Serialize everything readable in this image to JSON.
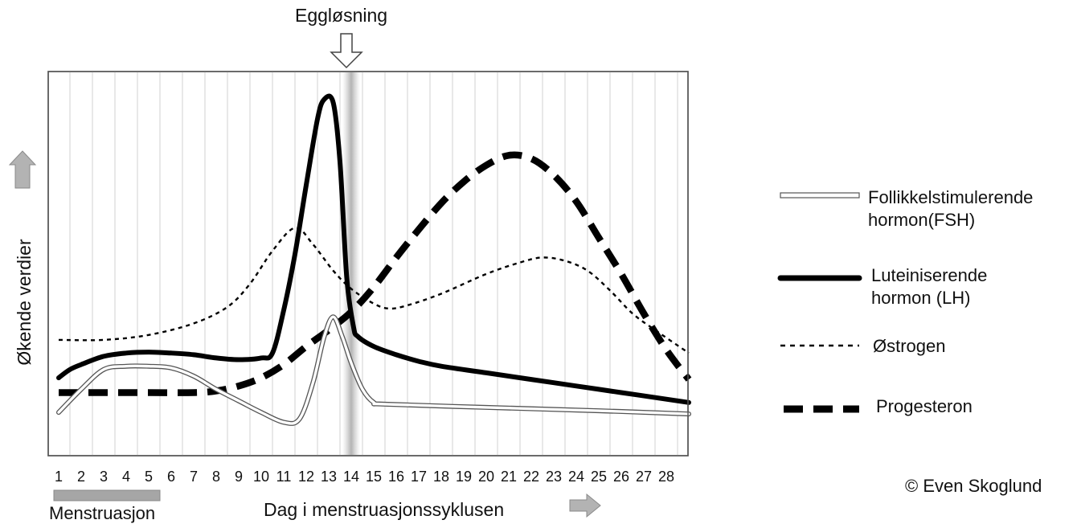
{
  "chart_data": {
    "type": "line",
    "title": "",
    "ovulation_label": "Eggløsning",
    "ovulation_day": 14,
    "xlabel": "Dag i menstruasjonssyklusen",
    "ylabel": "Økende verdier",
    "x": [
      1,
      2,
      3,
      4,
      5,
      6,
      7,
      8,
      9,
      10,
      11,
      12,
      13,
      14,
      15,
      16,
      17,
      18,
      19,
      20,
      21,
      22,
      23,
      24,
      25,
      26,
      27,
      28
    ],
    "xlim": [
      0.9,
      29.1
    ],
    "ylim": [
      0,
      100
    ],
    "grid": true,
    "legend_position": "right",
    "menstruation": {
      "label": "Menstruasjon",
      "start_day": 1,
      "end_day": 5.5
    },
    "copyright": "© Even Skoglund",
    "series": [
      {
        "name": "Follikkelstimulerende hormon(FSH)",
        "style": "outline",
        "color": "#ffffff",
        "points": [
          [
            1,
            9
          ],
          [
            2,
            16
          ],
          [
            3,
            22
          ],
          [
            4,
            23
          ],
          [
            5,
            23
          ],
          [
            6,
            22.5
          ],
          [
            7,
            20
          ],
          [
            8,
            16
          ],
          [
            9,
            12.5
          ],
          [
            10,
            9
          ],
          [
            11,
            6
          ],
          [
            11.7,
            7
          ],
          [
            12.3,
            18
          ],
          [
            12.8,
            32
          ],
          [
            13.2,
            38
          ],
          [
            13.6,
            32
          ],
          [
            14,
            24
          ],
          [
            14.5,
            16
          ],
          [
            15,
            12
          ],
          [
            15.5,
            11.5
          ],
          [
            20,
            10.5
          ],
          [
            25,
            9.5
          ],
          [
            29,
            8.5
          ]
        ]
      },
      {
        "name": "Luteiniserende hormon (LH)",
        "style": "solid",
        "color": "#000000",
        "points": [
          [
            1,
            19.5
          ],
          [
            1.5,
            22
          ],
          [
            2,
            23.5
          ],
          [
            3,
            26
          ],
          [
            4,
            27
          ],
          [
            5,
            27.3
          ],
          [
            6,
            27
          ],
          [
            7,
            26.5
          ],
          [
            8,
            25.5
          ],
          [
            9,
            25
          ],
          [
            10,
            25.5
          ],
          [
            10.5,
            27
          ],
          [
            11,
            40
          ],
          [
            11.5,
            57
          ],
          [
            12,
            78
          ],
          [
            12.5,
            98
          ],
          [
            12.8,
            104
          ],
          [
            13.2,
            103
          ],
          [
            13.5,
            85
          ],
          [
            13.8,
            50
          ],
          [
            14.1,
            35
          ],
          [
            14.3,
            32
          ],
          [
            15,
            29
          ],
          [
            16,
            26.5
          ],
          [
            17,
            24.5
          ],
          [
            18,
            23
          ],
          [
            20,
            21
          ],
          [
            22,
            19
          ],
          [
            24,
            17
          ],
          [
            26,
            15
          ],
          [
            28,
            13
          ],
          [
            29,
            12
          ]
        ]
      },
      {
        "name": "Østrogen",
        "style": "dotted",
        "color": "#000000",
        "points": [
          [
            1,
            31
          ],
          [
            3,
            31
          ],
          [
            5,
            32.5
          ],
          [
            7,
            36
          ],
          [
            8.5,
            41
          ],
          [
            9.5,
            48
          ],
          [
            10.5,
            58
          ],
          [
            11.5,
            65
          ],
          [
            12.3,
            60
          ],
          [
            13.2,
            52
          ],
          [
            14,
            46.5
          ],
          [
            15,
            42
          ],
          [
            15.7,
            40.5
          ],
          [
            16.5,
            41.5
          ],
          [
            18,
            45
          ],
          [
            20,
            51
          ],
          [
            21.5,
            54.5
          ],
          [
            22.5,
            56
          ],
          [
            23.5,
            55
          ],
          [
            24.5,
            52
          ],
          [
            25.5,
            46
          ],
          [
            26.5,
            39
          ],
          [
            27.5,
            34
          ],
          [
            29,
            27
          ]
        ]
      },
      {
        "name": "Progesteron",
        "style": "dashed",
        "color": "#000000",
        "points": [
          [
            1,
            15
          ],
          [
            3,
            15
          ],
          [
            5,
            15
          ],
          [
            7,
            15
          ],
          [
            8,
            15.5
          ],
          [
            9,
            17
          ],
          [
            10,
            19.5
          ],
          [
            11,
            23.5
          ],
          [
            12,
            29
          ],
          [
            13,
            34
          ],
          [
            14,
            39.5
          ],
          [
            15,
            47
          ],
          [
            16,
            56
          ],
          [
            17,
            64.5
          ],
          [
            18,
            72.5
          ],
          [
            19,
            79
          ],
          [
            20,
            84
          ],
          [
            21,
            87
          ],
          [
            22,
            86
          ],
          [
            23,
            81
          ],
          [
            24,
            73
          ],
          [
            25,
            62
          ],
          [
            26,
            51
          ],
          [
            27,
            39
          ],
          [
            28,
            28
          ],
          [
            29,
            19
          ]
        ]
      }
    ]
  }
}
